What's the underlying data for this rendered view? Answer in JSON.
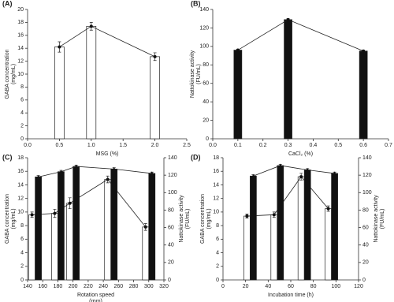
{
  "chart_data": [
    {
      "type": "bar-line",
      "label": "(A)",
      "xlabel": [
        "MSG (%)"
      ],
      "ylabel": [
        "GABA concentration",
        "(mg/mL)"
      ],
      "x": [
        0.5,
        1.0,
        2.0
      ],
      "xlim": [
        0,
        2.5
      ],
      "xticks": [
        {
          "value": 0,
          "label": "0.0"
        },
        0.5,
        {
          "value": 1,
          "label": "1.0"
        },
        1.5,
        {
          "value": 2,
          "label": "2.0"
        },
        2.5
      ],
      "ylim": [
        0,
        20
      ],
      "yticks": [
        0,
        2,
        4,
        6,
        8,
        10,
        12,
        14,
        16,
        18,
        20
      ],
      "series": [
        {
          "color": "#ffffff",
          "marker": "circle",
          "values": [
            14.2,
            17.4,
            12.7
          ],
          "errors": [
            0.8,
            0.6,
            0.6
          ]
        }
      ]
    },
    {
      "type": "bar-line",
      "label": "(B)",
      "xlabel": [
        "CaCl₂ (%)"
      ],
      "ylabel": [
        "Nattokinase activity",
        "(FU/mL)"
      ],
      "x": [
        0.1,
        0.3,
        0.6
      ],
      "xlim": [
        0,
        0.7
      ],
      "xticks": [
        {
          "value": 0,
          "label": "0.0"
        },
        0.1,
        0.2,
        0.3,
        0.4,
        0.5,
        0.6,
        0.7
      ],
      "ylim": [
        0,
        140
      ],
      "yticks": [
        0,
        20,
        40,
        60,
        80,
        100,
        120,
        140
      ],
      "series": [
        {
          "color": "#111111",
          "marker": "circle",
          "values": [
            96,
            129,
            95
          ],
          "errors": [
            1,
            1,
            1
          ]
        }
      ]
    },
    {
      "type": "bar-line",
      "label": "(C)",
      "xlabel": [
        "Rotation speed",
        "(rpm)"
      ],
      "ylabel": [
        "GABA concentration",
        "(mg/mL)"
      ],
      "y2label": [
        "Nattokinase activity",
        "(FU/mL)"
      ],
      "x": [
        150,
        180,
        200,
        250,
        300
      ],
      "xlim": [
        140,
        320
      ],
      "xticks": [
        140,
        160,
        180,
        200,
        220,
        240,
        260,
        280,
        300,
        320
      ],
      "ylim": [
        0,
        18
      ],
      "yticks": [
        0,
        2,
        4,
        6,
        8,
        10,
        12,
        14,
        16,
        18
      ],
      "y2lim": [
        0,
        140
      ],
      "y2ticks": [
        0,
        20,
        40,
        60,
        80,
        100,
        120,
        140
      ],
      "series": [
        {
          "color": "#ffffff",
          "marker": "circle",
          "values": [
            9.6,
            9.8,
            11.3,
            14.8,
            7.8
          ],
          "errors": [
            0.4,
            0.6,
            0.8,
            0.5,
            0.5
          ]
        },
        {
          "color": "#111111",
          "marker": "triangle",
          "axis": "y2",
          "values": [
            118,
            124,
            130,
            127,
            122
          ],
          "errors": [
            1.5,
            1.5,
            1.5,
            1.5,
            1.5
          ]
        }
      ]
    },
    {
      "type": "bar-line",
      "label": "(D)",
      "xlabel": [
        "Incubation time (h)"
      ],
      "ylabel": [
        "GABA concentration",
        "(mg/mL)"
      ],
      "y2label": [
        "Nattokinase activity",
        "(FU/mL)"
      ],
      "x": [
        24,
        48,
        72,
        96
      ],
      "xlim": [
        0,
        120
      ],
      "xticks": [
        0,
        20,
        40,
        60,
        80,
        100,
        120
      ],
      "ylim": [
        0,
        18
      ],
      "yticks": [
        0,
        2,
        4,
        6,
        8,
        10,
        12,
        14,
        16,
        18
      ],
      "y2lim": [
        0,
        140
      ],
      "y2ticks": [
        0,
        20,
        40,
        60,
        80,
        100,
        120,
        140
      ],
      "series": [
        {
          "color": "#ffffff",
          "marker": "circle",
          "values": [
            9.4,
            9.6,
            15.2,
            10.5
          ],
          "errors": [
            0.3,
            0.4,
            0.5,
            0.4
          ]
        },
        {
          "color": "#111111",
          "marker": "triangle",
          "axis": "y2",
          "values": [
            119,
            131,
            126,
            122
          ],
          "errors": [
            1.5,
            1.5,
            1.5,
            1.5
          ]
        }
      ]
    }
  ]
}
